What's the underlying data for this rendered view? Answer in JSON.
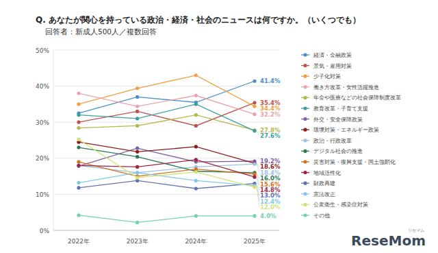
{
  "chart_data": {
    "type": "line",
    "title": "Q. あなたが関心を持っている政治・経済・社会のニュースは何ですか。（いくつでも）",
    "subtitle": "回答者：新成人500人／複数回答",
    "logo": "ReseMom",
    "logo_sub": "リセマム",
    "categories": [
      "2022年",
      "2023年",
      "2024年",
      "2025年"
    ],
    "ylim": [
      0,
      50
    ],
    "yticks": [
      {
        "value": 0,
        "label": "0%"
      },
      {
        "value": 10,
        "label": "10%"
      },
      {
        "value": 20,
        "label": "20%"
      },
      {
        "value": 30,
        "label": "30%"
      },
      {
        "value": 40,
        "label": "40%"
      },
      {
        "value": 50,
        "label": "50%"
      }
    ],
    "grid": true,
    "legend": "right",
    "data_labels": true,
    "marker": "circle",
    "series": [
      {
        "name": "経済・金融政策",
        "color": "#4a8fcb",
        "values": [
          32.5,
          37.0,
          35.5,
          41.4
        ],
        "value_labels": [
          null,
          null,
          null,
          "41.4%"
        ]
      },
      {
        "name": "景気・雇用対策",
        "color": "#c0504d",
        "values": [
          30.0,
          33.0,
          29.0,
          35.4
        ],
        "value_labels": [
          null,
          null,
          null,
          "35.4%"
        ]
      },
      {
        "name": "少子化対策",
        "color": "#f0a043",
        "values": [
          35.0,
          39.4,
          43.0,
          34.4
        ],
        "value_labels": [
          null,
          null,
          null,
          "34.4%"
        ]
      },
      {
        "name": "働き方改革・女性活躍推進",
        "color": "#e9a3ab",
        "values": [
          38.0,
          34.4,
          37.4,
          32.2
        ],
        "value_labels": [
          null,
          null,
          null,
          "32.2%"
        ]
      },
      {
        "name": "年金や医療などの社会保障制度改革",
        "color": "#b5b84a",
        "values": [
          28.4,
          29.0,
          32.0,
          27.8
        ],
        "value_labels": [
          null,
          null,
          null,
          "27.8%"
        ]
      },
      {
        "name": "教育改革・子育て支援",
        "color": "#3a9fa0",
        "values": [
          32.0,
          31.0,
          35.0,
          27.6
        ],
        "value_labels": [
          null,
          null,
          null,
          "27.6%"
        ]
      },
      {
        "name": "外交・安全保障政策",
        "color": "#7f62a3",
        "values": [
          17.8,
          22.8,
          19.0,
          19.2
        ],
        "value_labels": [
          null,
          null,
          null,
          "19.2%"
        ]
      },
      {
        "name": "環境対策・エネルギー政策",
        "color": "#8b1e1e",
        "values": [
          24.5,
          21.8,
          23.2,
          18.6
        ],
        "value_labels": [
          null,
          null,
          null,
          "18.6%"
        ]
      },
      {
        "name": "政治・行政改革",
        "color": "#9dc1e2",
        "values": [
          18.0,
          16.0,
          17.6,
          18.4
        ],
        "value_labels": [
          null,
          null,
          null,
          "18.4%"
        ]
      },
      {
        "name": "デジタル社会の推進",
        "color": "#2b7a52",
        "values": [
          23.0,
          20.4,
          16.4,
          16.0
        ],
        "value_labels": [
          null,
          null,
          null,
          "16.0%"
        ]
      },
      {
        "name": "災害対策・復興支援・国土強靭化",
        "color": "#d0721f",
        "values": [
          19.0,
          15.0,
          17.0,
          15.6
        ],
        "value_labels": [
          null,
          null,
          null,
          "15.6%"
        ]
      },
      {
        "name": "地域活性化",
        "color": "#a02442",
        "values": [
          18.0,
          17.6,
          19.6,
          14.8
        ],
        "value_labels": [
          null,
          null,
          null,
          "14.8%"
        ]
      },
      {
        "name": "財政再建",
        "color": "#6272b3",
        "values": [
          11.8,
          13.8,
          11.6,
          13.0
        ],
        "value_labels": [
          null,
          null,
          null,
          "13.0%"
        ]
      },
      {
        "name": "憲法改正",
        "color": "#80c8e8",
        "values": [
          13.2,
          16.0,
          13.8,
          12.4
        ],
        "value_labels": [
          null,
          null,
          null,
          "12.4%"
        ]
      },
      {
        "name": "公衆衛生・感染症対策",
        "color": "#d3e276",
        "values": [
          25.2,
          14.6,
          16.2,
          12.0
        ],
        "value_labels": [
          null,
          null,
          null,
          "12.0%"
        ]
      },
      {
        "name": "その他",
        "color": "#72d1b1",
        "values": [
          4.2,
          2.2,
          4.0,
          4.0
        ],
        "value_labels": [
          null,
          null,
          null,
          "4.0%"
        ]
      }
    ]
  }
}
